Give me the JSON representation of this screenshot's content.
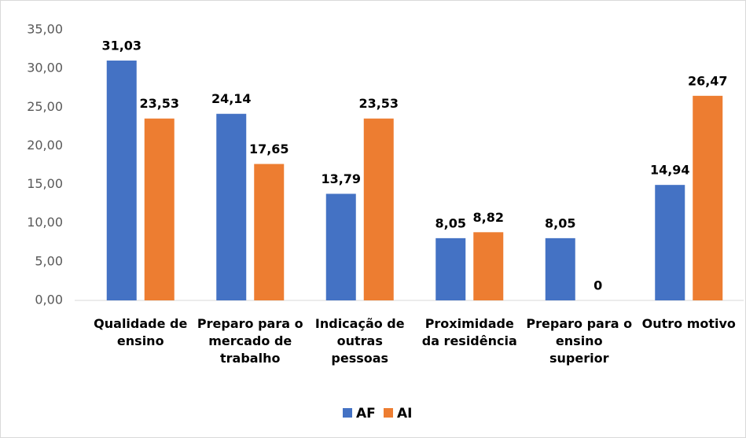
{
  "chart_data": {
    "type": "bar",
    "categories": [
      "Qualidade de ensino",
      "Preparo para o mercado de trabalho",
      "Indicação de outras pessoas",
      "Proximidade da residência",
      "Preparo para o ensino superior",
      "Outro motivo"
    ],
    "series": [
      {
        "name": "AF",
        "color": "#4472c4",
        "values": [
          31.03,
          24.14,
          13.79,
          8.05,
          8.05,
          14.94
        ],
        "value_labels": [
          "31,03",
          "24,14",
          "13,79",
          "8,05",
          "8,05",
          "14,94"
        ]
      },
      {
        "name": "AI",
        "color": "#ed7d31",
        "values": [
          23.53,
          17.65,
          23.53,
          8.82,
          0,
          26.47
        ],
        "value_labels": [
          "23,53",
          "17,65",
          "23,53",
          "8,82",
          "0",
          "26,47"
        ]
      }
    ],
    "ylim": [
      0,
      35
    ],
    "yticks": [
      {
        "value": 0,
        "label": "0,00"
      },
      {
        "value": 5,
        "label": "5,00"
      },
      {
        "value": 10,
        "label": "10,00"
      },
      {
        "value": 15,
        "label": "15,00"
      },
      {
        "value": 20,
        "label": "20,00"
      },
      {
        "value": 25,
        "label": "25,00"
      },
      {
        "value": 30,
        "label": "30,00"
      },
      {
        "value": 35,
        "label": "35,00"
      }
    ],
    "grid": false,
    "legend": "bottom"
  }
}
